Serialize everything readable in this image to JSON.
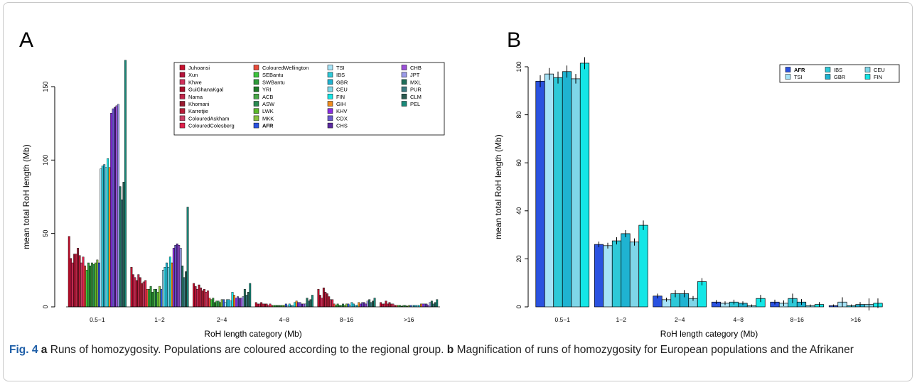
{
  "chart_data": [
    {
      "type": "bar",
      "panel_label": "A",
      "ylabel": "mean total RoH length (Mb)",
      "xlabel": "RoH length category (Mb)",
      "categories": [
        "0.5−1",
        "1−2",
        "2−4",
        "4−8",
        "8−16",
        ">16"
      ],
      "ylim": [
        0,
        168
      ],
      "yticks": [
        0,
        50,
        100,
        150
      ],
      "legend": "top-right",
      "series": [
        {
          "name": "Juhoansi",
          "color": "#c8102e",
          "values": [
            48,
            27,
            16,
            3,
            12,
            3
          ]
        },
        {
          "name": "Xun",
          "color": "#b5123a",
          "values": [
            33,
            22,
            14,
            2,
            8,
            2
          ]
        },
        {
          "name": "Khwe",
          "color": "#d0305a",
          "values": [
            30,
            20,
            12,
            2,
            6,
            2
          ]
        },
        {
          "name": "GuiGhanaKgal",
          "color": "#a80f2a",
          "values": [
            36,
            18,
            15,
            3,
            13,
            4
          ]
        },
        {
          "name": "Nama",
          "color": "#c0264a",
          "values": [
            36,
            22,
            13,
            2,
            10,
            2
          ]
        },
        {
          "name": "Khomani",
          "color": "#991a30",
          "values": [
            40,
            20,
            11,
            2,
            9,
            3
          ]
        },
        {
          "name": "Karretjie",
          "color": "#b81c38",
          "values": [
            35,
            16,
            12,
            2,
            7,
            2
          ]
        },
        {
          "name": "ColouredAskham",
          "color": "#c94066",
          "values": [
            30,
            17,
            10,
            1,
            5,
            2
          ]
        },
        {
          "name": "ColouredColesberg",
          "color": "#e0204c",
          "values": [
            34,
            18,
            11,
            2,
            5,
            1
          ]
        },
        {
          "name": "ColouredWellington",
          "color": "#e84a3a",
          "values": [
            28,
            12,
            6,
            1,
            2,
            1
          ]
        },
        {
          "name": "SEBantu",
          "color": "#3cc43c",
          "values": [
            25,
            12,
            5,
            1,
            1,
            1
          ]
        },
        {
          "name": "SWBantu",
          "color": "#2e9a3a",
          "values": [
            30,
            14,
            6,
            1,
            2,
            1
          ]
        },
        {
          "name": "YRI",
          "color": "#1e7a28",
          "values": [
            28,
            10,
            3,
            1,
            1,
            0.5
          ]
        },
        {
          "name": "ACB",
          "color": "#48a848",
          "values": [
            30,
            12,
            4,
            1,
            1,
            1
          ]
        },
        {
          "name": "ASW",
          "color": "#2a8a50",
          "values": [
            29,
            12,
            4,
            1,
            2,
            1
          ]
        },
        {
          "name": "LWK",
          "color": "#5ab82a",
          "values": [
            30,
            10,
            3,
            1,
            1,
            0.5
          ]
        },
        {
          "name": "MKK",
          "color": "#88c040",
          "values": [
            32,
            14,
            5,
            1,
            2,
            1
          ]
        },
        {
          "name": "AFR",
          "color": "#2a52e0",
          "values": [
            30,
            12,
            5,
            2,
            2,
            1
          ]
        },
        {
          "name": "TSI",
          "color": "#a6e3f7",
          "values": [
            94,
            25,
            3,
            1,
            1,
            1
          ]
        },
        {
          "name": "IBS",
          "color": "#2ec9d8",
          "values": [
            96,
            27,
            5,
            2,
            3,
            1
          ]
        },
        {
          "name": "GBR",
          "color": "#1fb3d1",
          "values": [
            97,
            30,
            5,
            1,
            2,
            1
          ]
        },
        {
          "name": "CEU",
          "color": "#7fd6e8",
          "values": [
            95,
            27,
            4,
            1,
            1,
            1
          ]
        },
        {
          "name": "FIN",
          "color": "#14e6e6",
          "values": [
            101,
            34,
            10,
            3,
            1,
            1
          ]
        },
        {
          "name": "GIH",
          "color": "#f08c1e",
          "values": [
            95,
            30,
            8,
            4,
            3,
            2
          ]
        },
        {
          "name": "KHV",
          "color": "#8a2be2",
          "values": [
            132,
            40,
            6,
            3,
            2,
            2
          ]
        },
        {
          "name": "CDX",
          "color": "#6a5acd",
          "values": [
            135,
            42,
            7,
            3,
            3,
            2
          ]
        },
        {
          "name": "CHS",
          "color": "#5b2aa0",
          "values": [
            136,
            43,
            6,
            2,
            3,
            2
          ]
        },
        {
          "name": "CHB",
          "color": "#9b4fd8",
          "values": [
            137,
            42,
            6,
            2,
            2,
            1
          ]
        },
        {
          "name": "JPT",
          "color": "#9a9ae8",
          "values": [
            138,
            40,
            7,
            2,
            4,
            3
          ]
        },
        {
          "name": "MXL",
          "color": "#1e6e5a",
          "values": [
            82,
            28,
            12,
            6,
            5,
            4
          ]
        },
        {
          "name": "PUR",
          "color": "#3a7a80",
          "values": [
            73,
            20,
            8,
            4,
            3,
            2
          ]
        },
        {
          "name": "CLM",
          "color": "#2a5a50",
          "values": [
            85,
            24,
            10,
            5,
            4,
            3
          ]
        },
        {
          "name": "PEL",
          "color": "#1a8a7a",
          "values": [
            168,
            68,
            16,
            8,
            6,
            5
          ]
        }
      ]
    },
    {
      "type": "bar",
      "panel_label": "B",
      "ylabel": "mean total RoH length (Mb)",
      "xlabel": "RoH length category (Mb)",
      "categories": [
        "0.5−1",
        "1−2",
        "2−4",
        "4−8",
        "8−16",
        ">16"
      ],
      "ylim": [
        0,
        104
      ],
      "yticks": [
        0,
        20,
        40,
        60,
        80,
        100
      ],
      "legend": "top-right",
      "series": [
        {
          "name": "AFR",
          "color": "#2a52e0",
          "values": [
            94,
            26,
            4.5,
            2,
            2,
            0.5
          ],
          "errors": [
            2.5,
            1.2,
            1,
            0.8,
            1,
            0.5
          ]
        },
        {
          "name": "TSI",
          "color": "#a6e3f7",
          "values": [
            97,
            25.5,
            3,
            1.5,
            1.5,
            2
          ],
          "errors": [
            2.5,
            1.2,
            0.8,
            0.8,
            1.2,
            2
          ]
        },
        {
          "name": "IBS",
          "color": "#2ec9d8",
          "values": [
            95.5,
            27.5,
            5.5,
            2,
            3.5,
            0.5
          ],
          "errors": [
            2.5,
            1.5,
            1.5,
            1,
            2,
            0.5
          ]
        },
        {
          "name": "GBR",
          "color": "#1fb3d1",
          "values": [
            98,
            30.5,
            5.5,
            1.5,
            2,
            1
          ],
          "errors": [
            2.5,
            1.5,
            1.5,
            0.8,
            1.2,
            1
          ]
        },
        {
          "name": "CEU",
          "color": "#7fd6e8",
          "values": [
            95,
            27,
            3.5,
            0.5,
            0.5,
            1
          ],
          "errors": [
            2,
            1.5,
            1,
            0.5,
            0.5,
            2.5
          ]
        },
        {
          "name": "FIN",
          "color": "#14e6e6",
          "values": [
            101.5,
            34,
            10.5,
            3.5,
            1,
            1.5
          ],
          "errors": [
            2.5,
            2,
            1.5,
            1.5,
            1,
            2
          ]
        }
      ]
    }
  ],
  "caption": {
    "label": "Fig. 4",
    "part_a": "a",
    "text_a": "Runs of homozygosity. Populations are coloured according to the regional group.",
    "part_b": "b",
    "text_b": "Magnification of runs of homozygosity for European populations and the Afrikaner"
  }
}
